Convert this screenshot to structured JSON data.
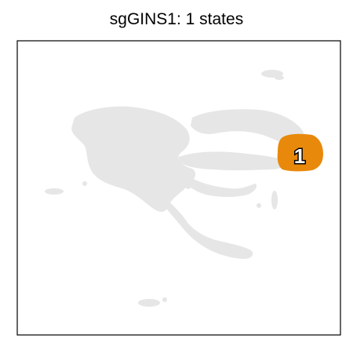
{
  "chart_data": {
    "type": "scatter",
    "title": "sgGINS1: 1 states",
    "xlabel": "",
    "ylabel": "",
    "grid": false,
    "legend": "none",
    "background_color": "#e6e6e6",
    "highlight_color": "#e8890c",
    "frame_color": "#000000",
    "states": [
      {
        "label": "1",
        "color": "#e8890c"
      }
    ]
  }
}
